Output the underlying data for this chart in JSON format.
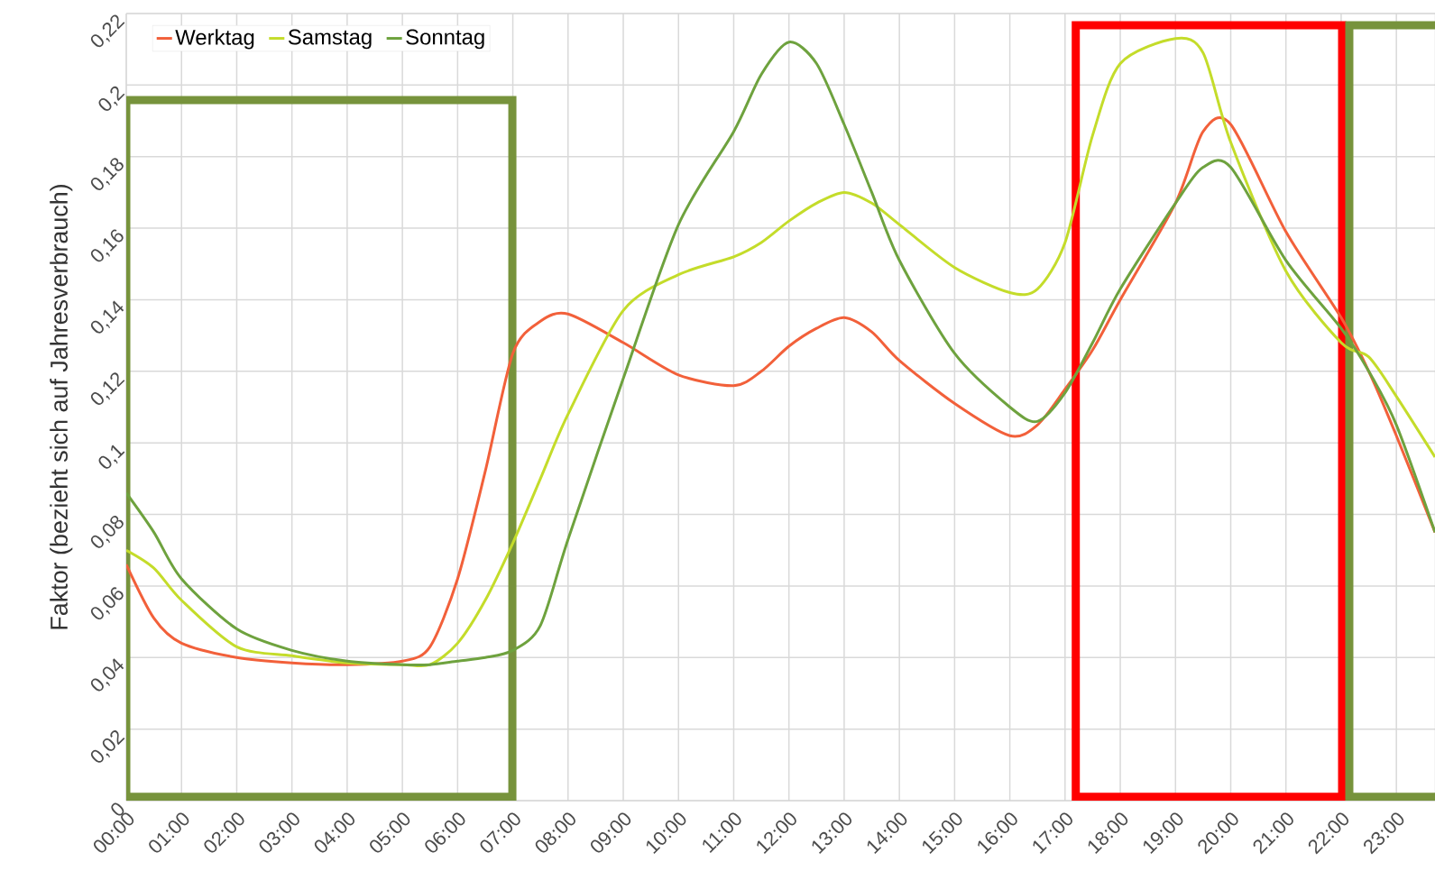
{
  "chart_data": {
    "type": "line",
    "ylabel": "Faktor (bezieht sich auf Jahresverbrauch)",
    "x": [
      0,
      0.5,
      1,
      2,
      3,
      4,
      5,
      5.5,
      6,
      6.5,
      7,
      7.5,
      8,
      9,
      10,
      11,
      11.5,
      12,
      12.5,
      13,
      13.5,
      14,
      15,
      16,
      16.5,
      17,
      17.5,
      18,
      19,
      19.5,
      20,
      21,
      22,
      22.5,
      23,
      23.7
    ],
    "series": [
      {
        "name": "Werktag",
        "color": "#f2603a",
        "values": [
          0.066,
          0.051,
          0.044,
          0.04,
          0.0385,
          0.038,
          0.039,
          0.043,
          0.062,
          0.092,
          0.125,
          0.134,
          0.136,
          0.128,
          0.119,
          0.116,
          0.12,
          0.127,
          0.132,
          0.135,
          0.131,
          0.123,
          0.111,
          0.102,
          0.105,
          0.115,
          0.126,
          0.14,
          0.167,
          0.187,
          0.189,
          0.159,
          0.135,
          0.12,
          0.102,
          0.075
        ]
      },
      {
        "name": "Samstag",
        "color": "#c4dc2a",
        "values": [
          0.07,
          0.065,
          0.056,
          0.043,
          0.0405,
          0.0385,
          0.038,
          0.038,
          0.044,
          0.056,
          0.072,
          0.09,
          0.108,
          0.137,
          0.147,
          0.152,
          0.156,
          0.162,
          0.167,
          0.17,
          0.167,
          0.161,
          0.149,
          0.142,
          0.143,
          0.156,
          0.186,
          0.206,
          0.213,
          0.209,
          0.184,
          0.148,
          0.128,
          0.124,
          0.113,
          0.096
        ]
      },
      {
        "name": "Sonntag",
        "color": "#6ea23e",
        "values": [
          0.086,
          0.075,
          0.062,
          0.048,
          0.042,
          0.039,
          0.038,
          0.038,
          0.039,
          0.04,
          0.042,
          0.049,
          0.073,
          0.118,
          0.161,
          0.187,
          0.203,
          0.212,
          0.206,
          0.189,
          0.17,
          0.151,
          0.125,
          0.11,
          0.106,
          0.114,
          0.128,
          0.143,
          0.167,
          0.177,
          0.177,
          0.151,
          0.132,
          0.12,
          0.105,
          0.075
        ]
      }
    ],
    "xlim": [
      0,
      23.7
    ],
    "ylim": [
      0,
      0.22
    ],
    "xticks": [
      {
        "value": 0,
        "label": "00:00"
      },
      {
        "value": 1,
        "label": "01:00"
      },
      {
        "value": 2,
        "label": "02:00"
      },
      {
        "value": 3,
        "label": "03:00"
      },
      {
        "value": 4,
        "label": "04:00"
      },
      {
        "value": 5,
        "label": "05:00"
      },
      {
        "value": 6,
        "label": "06:00"
      },
      {
        "value": 7,
        "label": "07:00"
      },
      {
        "value": 8,
        "label": "08:00"
      },
      {
        "value": 9,
        "label": "09:00"
      },
      {
        "value": 10,
        "label": "10:00"
      },
      {
        "value": 11,
        "label": "11:00"
      },
      {
        "value": 12,
        "label": "12:00"
      },
      {
        "value": 13,
        "label": "13:00"
      },
      {
        "value": 14,
        "label": "14:00"
      },
      {
        "value": 15,
        "label": "15:00"
      },
      {
        "value": 16,
        "label": "16:00"
      },
      {
        "value": 17,
        "label": "17:00"
      },
      {
        "value": 18,
        "label": "18:00"
      },
      {
        "value": 19,
        "label": "19:00"
      },
      {
        "value": 20,
        "label": "20:00"
      },
      {
        "value": 21,
        "label": "21:00"
      },
      {
        "value": 22,
        "label": "22:00"
      },
      {
        "value": 23,
        "label": "23:00"
      }
    ],
    "yticks": [
      0,
      {
        "value": 0.02,
        "label": "0,02"
      },
      {
        "value": 0.04,
        "label": "0,04"
      },
      {
        "value": 0.06,
        "label": "0,06"
      },
      {
        "value": 0.08,
        "label": "0,08"
      },
      {
        "value": 0.1,
        "label": "0,1"
      },
      {
        "value": 0.12,
        "label": "0,12"
      },
      {
        "value": 0.14,
        "label": "0,14"
      },
      {
        "value": 0.16,
        "label": "0,16"
      },
      {
        "value": 0.18,
        "label": "0,18"
      },
      {
        "value": 0.2,
        "label": "0,2"
      },
      {
        "value": 0.22,
        "label": "0,22"
      }
    ],
    "grid": true,
    "legend": "top left"
  }
}
